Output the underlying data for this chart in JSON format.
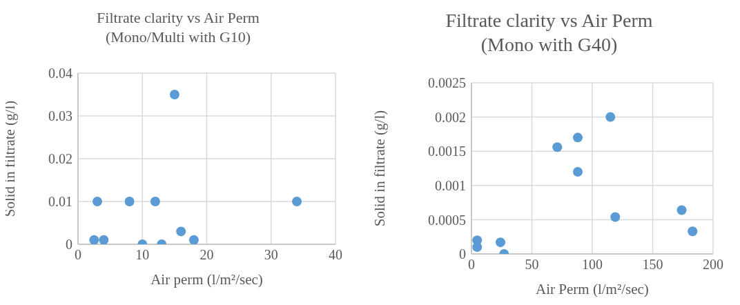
{
  "chart_data": [
    {
      "type": "scatter",
      "title": "Filtrate clarity vs Air Perm\n(Mono/Multi with G10)",
      "xlabel": "Air perm (l/m²/sec)",
      "ylabel": "Solid in filtrate (g/l)",
      "color": "#5b9bd5",
      "marker": "circle",
      "grid": true,
      "x": [
        2.5,
        3,
        3.5,
        4,
        8,
        10,
        12,
        13,
        15,
        16,
        18,
        34
      ],
      "values": [
        0.001,
        0.01,
        null,
        0.001,
        0.01,
        0,
        0.01,
        0,
        0.035,
        0.003,
        0.001,
        0.01
      ],
      "xlim": [
        0,
        40
      ],
      "xticks": [
        0,
        10,
        20,
        30,
        40
      ],
      "ylim": [
        0,
        0.04
      ],
      "yticks": [
        0,
        0.01,
        0.02,
        0.03,
        0.04
      ]
    },
    {
      "type": "scatter",
      "title": "Filtrate clarity vs Air Perm\n(Mono with G40)",
      "xlabel": "Air Perm (l/m²/sec)",
      "ylabel": "Solid in filtrate (g/l)",
      "color": "#5b9bd5",
      "marker": "circle",
      "grid": true,
      "x": [
        4.7,
        4.7,
        24,
        27,
        71,
        88,
        88,
        115,
        119,
        174,
        183
      ],
      "values": [
        0.0002,
        0.0001,
        0.00017,
        0,
        0.00156,
        0.0017,
        0.0012,
        0.002,
        0.00054,
        0.00064,
        0.00033
      ],
      "xlim": [
        0,
        200
      ],
      "xticks": [
        0,
        50,
        100,
        150,
        200
      ],
      "ylim": [
        0,
        0.0025
      ],
      "yticks": [
        0,
        0.0005,
        0.001,
        0.0015,
        0.002,
        0.0025
      ]
    }
  ]
}
